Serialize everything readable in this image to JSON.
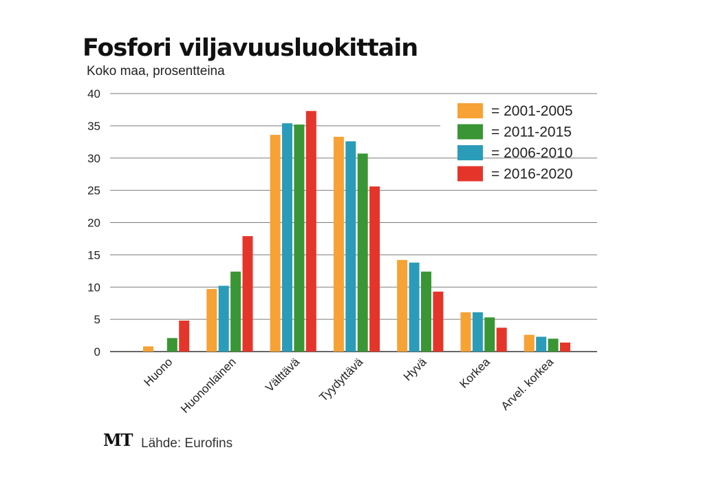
{
  "chart_data": {
    "type": "bar",
    "title": "Fosfori viljavuusluokittain",
    "subtitle": "Koko maa, prosentteina",
    "categories": [
      "Huono",
      "Huononlainen",
      "Välttävä",
      "Tyydyttävä",
      "Hyvä",
      "Korkea",
      "Arvel. korkea"
    ],
    "series": [
      {
        "name": "= 2001-2005",
        "color": "#f7a234",
        "values": [
          0.8,
          9.7,
          33.6,
          33.3,
          14.2,
          6.1,
          2.6
        ]
      },
      {
        "name": "= 2006-2010",
        "color": "#2a9cb9",
        "values": [
          0.0,
          10.2,
          35.4,
          32.6,
          13.8,
          6.1,
          2.3
        ]
      },
      {
        "name": "= 2011-2015",
        "color": "#3a9634",
        "values": [
          2.1,
          12.4,
          35.2,
          30.7,
          12.4,
          5.3,
          2.0
        ]
      },
      {
        "name": "= 2016-2020",
        "color": "#e5352b",
        "values": [
          4.8,
          17.9,
          37.3,
          25.6,
          9.3,
          3.7,
          1.4
        ]
      }
    ],
    "legend_order": [
      "= 2001-2005",
      "= 2011-2015",
      "= 2006-2010",
      "= 2016-2020"
    ],
    "legend_position": "top-right",
    "ylim": [
      0,
      40
    ],
    "yticks": [
      "0",
      "5",
      "10",
      "15",
      "20",
      "25",
      "30",
      "35",
      "40"
    ],
    "grid": true
  },
  "footer": {
    "logo": "MT",
    "source": "Lähde: Eurofins"
  }
}
